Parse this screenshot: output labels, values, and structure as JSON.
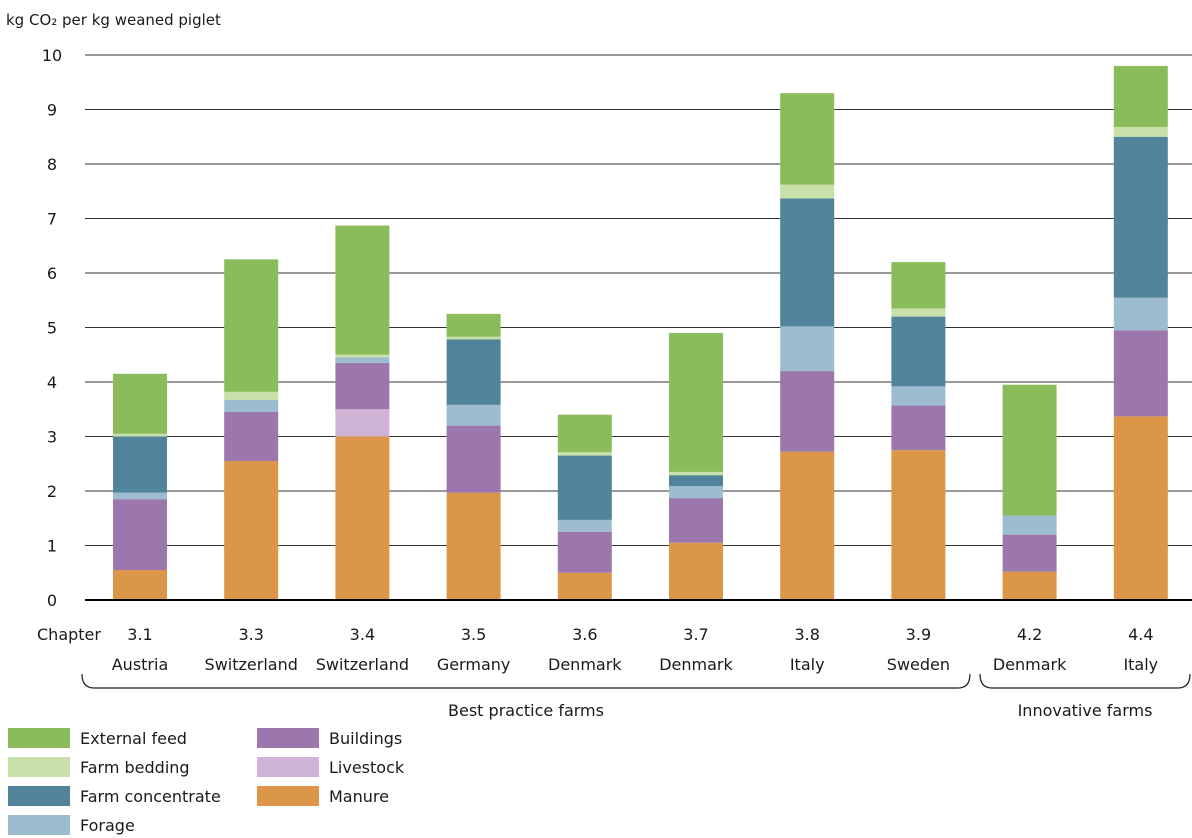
{
  "chart_data": {
    "type": "bar",
    "stacked": true,
    "ylabel": "kg CO₂ per kg weaned piglet",
    "ylim": [
      0,
      10
    ],
    "yticks": [
      "0",
      "1",
      "2",
      "3",
      "4",
      "5",
      "6",
      "7",
      "8",
      "9",
      "10"
    ],
    "chapter_label": "Chapter",
    "categories": [
      {
        "chapter": "3.1",
        "country": "Austria"
      },
      {
        "chapter": "3.3",
        "country": "Switzerland"
      },
      {
        "chapter": "3.4",
        "country": "Switzerland"
      },
      {
        "chapter": "3.5",
        "country": "Germany"
      },
      {
        "chapter": "3.6",
        "country": "Denmark"
      },
      {
        "chapter": "3.7",
        "country": "Denmark"
      },
      {
        "chapter": "3.8",
        "country": "Italy"
      },
      {
        "chapter": "3.9",
        "country": "Sweden"
      },
      {
        "chapter": "4.2",
        "country": "Denmark"
      },
      {
        "chapter": "4.4",
        "country": "Italy"
      }
    ],
    "groups": [
      {
        "label": "Best practice farms",
        "from": 0,
        "to": 7
      },
      {
        "label": "Innovative farms",
        "from": 8,
        "to": 9
      }
    ],
    "series": [
      {
        "name": "Manure",
        "color": "#db9647",
        "values": [
          0.55,
          2.55,
          3.0,
          1.97,
          0.5,
          1.05,
          2.72,
          2.75,
          0.52,
          3.37
        ]
      },
      {
        "name": "Livestock",
        "color": "#cfb4d6",
        "values": [
          0,
          0,
          0.5,
          0,
          0,
          0,
          0,
          0,
          0,
          0
        ]
      },
      {
        "name": "Buildings",
        "color": "#9b77ad",
        "values": [
          1.3,
          0.9,
          0.85,
          1.23,
          0.75,
          0.82,
          1.48,
          0.82,
          0.68,
          1.58
        ]
      },
      {
        "name": "Forage",
        "color": "#9dbccf",
        "values": [
          0.12,
          0.22,
          0.1,
          0.38,
          0.22,
          0.22,
          0.82,
          0.35,
          0.35,
          0.6
        ]
      },
      {
        "name": "Farm concentrate",
        "color": "#51849a",
        "values": [
          1.03,
          0,
          0,
          1.2,
          1.18,
          0.2,
          2.35,
          1.28,
          0,
          2.95
        ]
      },
      {
        "name": "Farm bedding",
        "color": "#c8e0a9",
        "values": [
          0.05,
          0.15,
          0.05,
          0.05,
          0.06,
          0.06,
          0.25,
          0.15,
          0,
          0.18
        ]
      },
      {
        "name": "External feed",
        "color": "#8bbc5c",
        "values": [
          1.1,
          2.43,
          2.37,
          0.42,
          0.69,
          2.55,
          1.68,
          0.85,
          2.4,
          1.12
        ]
      }
    ],
    "legend": {
      "position": "bottom-left",
      "order": [
        "External feed",
        "Farm bedding",
        "Farm concentrate",
        "Forage",
        "Buildings",
        "Livestock",
        "Manure"
      ]
    },
    "grid": true
  }
}
